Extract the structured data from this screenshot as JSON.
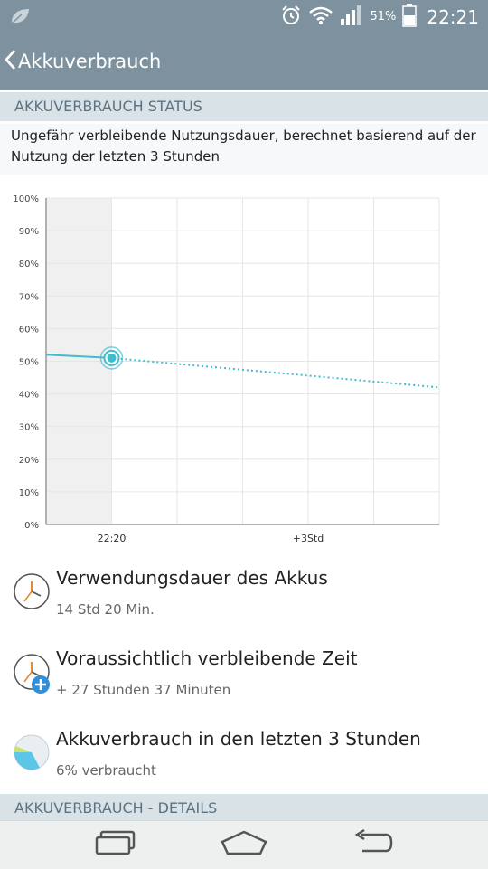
{
  "status_bar": {
    "battery_percent": "51%",
    "time": "22:21",
    "icons": [
      "leaf-icon",
      "alarm-icon",
      "wifi-icon",
      "signal-icon",
      "battery-icon"
    ]
  },
  "app_bar": {
    "title": "Akkuverbrauch"
  },
  "section_status": {
    "header": "AKKUVERBRAUCH STATUS",
    "description": "Ungefähr verbleibende Nutzungsdauer, berechnet basierend auf der Nutzung der letzten 3 Stunden"
  },
  "chart_data": {
    "type": "line",
    "y_tick_labels": [
      "100%",
      "90%",
      "80%",
      "70%",
      "60%",
      "50%",
      "40%",
      "30%",
      "20%",
      "10%",
      "0%"
    ],
    "x_tick_labels": [
      "22:20",
      "+3Std"
    ],
    "ylim": [
      0,
      100
    ],
    "grid": true,
    "colors": {
      "line": "#3fbdd0",
      "area": "#f0f0f0",
      "grid": "#e6e6e6"
    },
    "series": [
      {
        "style": "solid",
        "points": [
          [
            0,
            52
          ],
          [
            1,
            51
          ]
        ]
      },
      {
        "style": "dotted",
        "points": [
          [
            1,
            51
          ],
          [
            6,
            42
          ]
        ]
      }
    ],
    "current_point": [
      1,
      51
    ]
  },
  "items": [
    {
      "title": "Verwendungsdauer des Akkus",
      "subtitle": "14 Std 20 Min.",
      "icon": "clock-icon"
    },
    {
      "title": "Voraussichtlich verbleibende Zeit",
      "subtitle": "+ 27 Stunden 37 Minuten",
      "icon": "clock-plus-icon"
    },
    {
      "title": "Akkuverbrauch in den letzten 3 Stunden",
      "subtitle": "6% verbraucht",
      "icon": "pie-chart-icon"
    }
  ],
  "section_details": {
    "header": "AKKUVERBRAUCH - DETAILS"
  },
  "nav_bar": {
    "buttons": [
      "recent-apps",
      "home",
      "back"
    ]
  },
  "colors": {
    "accent": "#3fbdd0",
    "bar": "#7d929e",
    "section_bg": "#d9e2e6"
  }
}
